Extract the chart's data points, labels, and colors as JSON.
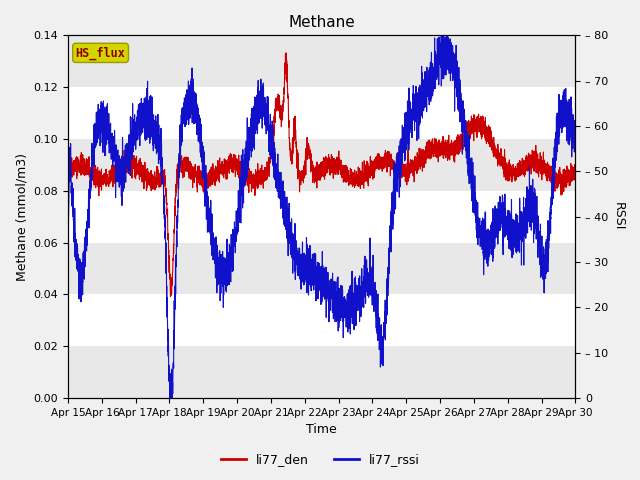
{
  "title": "Methane",
  "ylabel_left": "Methane (mmol/m3)",
  "ylabel_right": "RSSI",
  "xlabel": "Time",
  "ylim_left": [
    0.0,
    0.14
  ],
  "ylim_right": [
    0,
    80
  ],
  "x_tick_labels": [
    "Apr 15",
    "Apr 16",
    "Apr 17",
    "Apr 18",
    "Apr 19",
    "Apr 20",
    "Apr 21",
    "Apr 22",
    "Apr 23",
    "Apr 24",
    "Apr 25",
    "Apr 26",
    "Apr 27",
    "Apr 28",
    "Apr 29",
    "Apr 30"
  ],
  "color_red": "#cc0000",
  "color_blue": "#1111cc",
  "fig_bg_color": "#f0f0f0",
  "plot_bg_color": "#ffffff",
  "band_color": "#e8e8e8",
  "hs_flux_bg": "#d4d400",
  "hs_flux_edge": "#999900",
  "hs_flux_text": "#8b0000",
  "legend_red_label": "li77_den",
  "legend_blue_label": "li77_rssi",
  "hs_flux_label": "HS_flux",
  "title_fontsize": 11,
  "axis_fontsize": 9,
  "tick_fontsize": 8
}
